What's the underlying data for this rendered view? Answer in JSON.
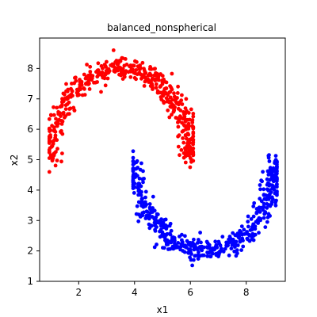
{
  "chart_data": {
    "type": "scatter",
    "title": "balanced_nonspherical",
    "xlabel": "x1",
    "ylabel": "x2",
    "xlim": [
      0.6,
      9.4
    ],
    "ylim": [
      1.0,
      9.0
    ],
    "xticks": [
      2,
      4,
      6,
      8
    ],
    "yticks": [
      1,
      2,
      3,
      4,
      5,
      6,
      7,
      8
    ],
    "grid": false,
    "legend": "none",
    "series": [
      {
        "color": "#ff0000",
        "shape": "upper-arc",
        "center": [
          3.5,
          5.0
        ],
        "radius_x": 2.5,
        "radius_y": 3.0,
        "x_range": [
          1.0,
          6.0
        ],
        "y_range": [
          4.6,
          8.6
        ],
        "noise": 0.18,
        "count": 500
      },
      {
        "color": "#0000ff",
        "shape": "lower-arc",
        "center": [
          6.5,
          5.0
        ],
        "radius_x": 2.5,
        "radius_y": 3.0,
        "x_range": [
          4.0,
          9.0
        ],
        "y_range": [
          1.4,
          5.7
        ],
        "noise": 0.18,
        "count": 500
      }
    ]
  }
}
